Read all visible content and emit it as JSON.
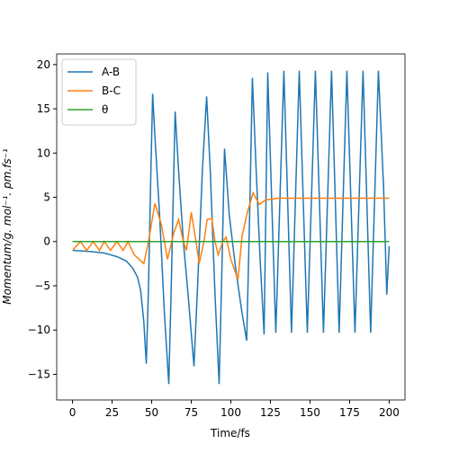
{
  "chart_data": {
    "type": "line",
    "xlabel": "Time/fs",
    "ylabel": "Momentum/g. mol⁻¹. pm.fs⁻¹",
    "xlim": [
      -10,
      210
    ],
    "ylim": [
      -17.9,
      21.2
    ],
    "xticks": [
      0,
      25,
      50,
      75,
      100,
      125,
      150,
      175,
      200
    ],
    "yticks": [
      {
        "value": -15,
        "label": "−15"
      },
      {
        "value": -10,
        "label": "−10"
      },
      {
        "value": -5,
        "label": "−5"
      },
      0,
      5,
      10,
      15,
      20
    ],
    "legend": "upper left",
    "series": [
      {
        "name": "A-B",
        "color": "#1f77b4",
        "x": [
          0,
          10,
          20,
          28,
          34,
          38,
          41,
          43,
          45,
          46.6,
          48,
          49.5,
          50.6,
          52,
          55,
          58,
          60.8,
          62.5,
          64.8,
          67,
          70,
          73,
          76.7,
          79,
          82,
          84.7,
          87,
          90,
          92.6,
          94.5,
          96,
          99,
          103,
          107,
          110,
          112,
          113.6,
          116,
          118.5,
          121,
          123.3,
          128.4,
          133.5,
          138.3,
          143.2,
          148.3,
          153.4,
          158.5,
          163.6,
          168.4,
          173.3,
          178.4,
          183.5,
          188.3,
          193.2,
          196.5,
          198.5,
          200
        ],
        "values": [
          -1,
          -1.1,
          -1.3,
          -1.7,
          -2.2,
          -3,
          -4,
          -5.5,
          -9,
          -13.8,
          -5,
          8,
          16.7,
          12,
          3,
          -8,
          -16.1,
          -4,
          14.7,
          8,
          0,
          -6,
          -14.1,
          -5,
          8,
          16.4,
          8,
          -6,
          -16.1,
          -2,
          10.5,
          3,
          -3,
          -8,
          -11.2,
          4,
          18.5,
          8,
          -2,
          -10.5,
          19.1,
          -10.3,
          19.3,
          -10.3,
          19.3,
          -10.3,
          19.3,
          -10.3,
          19.3,
          -10.3,
          19.3,
          -10.3,
          19.3,
          -10.3,
          19.3,
          6,
          -6,
          -0.5
        ]
      },
      {
        "name": "B-C",
        "color": "#ff7f0e",
        "x": [
          0,
          5,
          9,
          13,
          17,
          20,
          24,
          28,
          32,
          35,
          39,
          42,
          45,
          48,
          52,
          56,
          60,
          64,
          67,
          70,
          72,
          75,
          78,
          80,
          83,
          85,
          88,
          90,
          92,
          95,
          97,
          100,
          104.5,
          107,
          110,
          114,
          118,
          122,
          130,
          200
        ],
        "values": [
          -1,
          0,
          -1,
          0,
          -1,
          0,
          -1,
          0,
          -1,
          0,
          -1.5,
          -2,
          -2.5,
          0,
          4.3,
          2,
          -2,
          1,
          2.5,
          0,
          -1,
          3.3,
          0,
          -2.5,
          0,
          2.5,
          2.6,
          0,
          -1.5,
          0,
          0.5,
          -2,
          -4.3,
          0.5,
          3,
          5.5,
          4.2,
          4.7,
          4.9,
          4.9
        ]
      },
      {
        "name": "θ",
        "color": "#2ca02c",
        "x": [
          0,
          200
        ],
        "values": [
          0,
          0
        ]
      }
    ]
  }
}
